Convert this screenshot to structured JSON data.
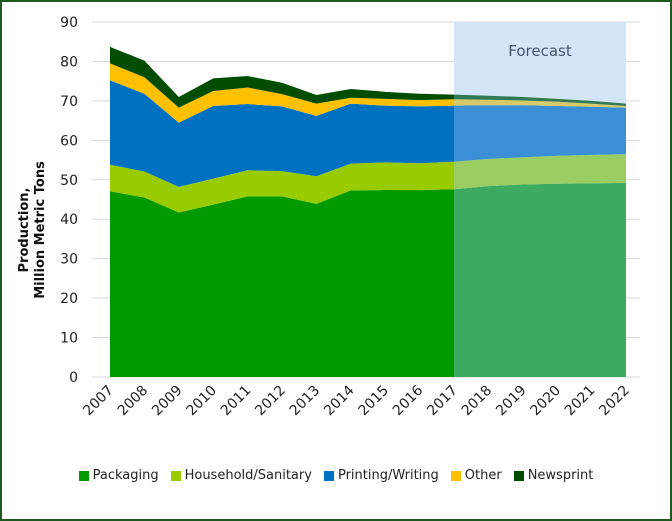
{
  "chart_data": {
    "type": "area",
    "stacked": true,
    "title": "",
    "xlabel": "",
    "ylabel_lines": [
      "Production,",
      "Million Metric Tons"
    ],
    "ylim": [
      0,
      90
    ],
    "yticks": [
      0,
      10,
      20,
      30,
      40,
      50,
      60,
      70,
      80,
      90
    ],
    "grid": true,
    "legend_position": "bottom",
    "annotation": "Forecast",
    "forecast_start": "2017",
    "forecast_end": "2022",
    "categories": [
      "2007",
      "2008",
      "2009",
      "2010",
      "2011",
      "2012",
      "2013",
      "2014",
      "2015",
      "2016",
      "2017",
      "2018",
      "2019",
      "2020",
      "2021",
      "2022"
    ],
    "series": [
      {
        "name": "Packaging",
        "color": "#009a00",
        "forecast_color": "#3dac62",
        "values": [
          47.1,
          45.5,
          41.7,
          43.7,
          45.8,
          45.8,
          43.9,
          47.3,
          47.4,
          47.4,
          47.6,
          48.4,
          48.8,
          49.0,
          49.1,
          49.2
        ]
      },
      {
        "name": "Household/Sanitary",
        "color": "#99cc00",
        "forecast_color": "#9acd62",
        "values": [
          6.7,
          6.6,
          6.5,
          6.6,
          6.6,
          6.4,
          7.0,
          6.8,
          7.0,
          6.8,
          7.0,
          6.9,
          6.9,
          7.1,
          7.2,
          7.3
        ]
      },
      {
        "name": "Printing/Writing",
        "color": "#0070c0",
        "forecast_color": "#3a8fd6",
        "values": [
          21.4,
          19.7,
          16.3,
          18.4,
          16.8,
          16.4,
          15.3,
          15.2,
          14.4,
          14.4,
          14.2,
          13.6,
          13.2,
          12.6,
          12.2,
          11.8
        ]
      },
      {
        "name": "Other",
        "color": "#ffc000",
        "forecast_color": "#d6c96a",
        "values": [
          4.3,
          4.2,
          3.8,
          3.8,
          4.2,
          3.1,
          3.1,
          1.5,
          1.7,
          1.6,
          1.6,
          1.4,
          1.2,
          1.1,
          0.8,
          0.4
        ]
      },
      {
        "name": "Newsprint",
        "color": "#004d00",
        "forecast_color": "#2f7a52",
        "values": [
          4.2,
          4.2,
          2.7,
          3.2,
          2.9,
          2.9,
          2.2,
          2.2,
          1.8,
          1.6,
          1.2,
          1.0,
          0.9,
          0.7,
          0.7,
          0.6
        ]
      }
    ],
    "forecast_band_color": "#d3e6f8",
    "frame_color": "#1e5a1e"
  }
}
